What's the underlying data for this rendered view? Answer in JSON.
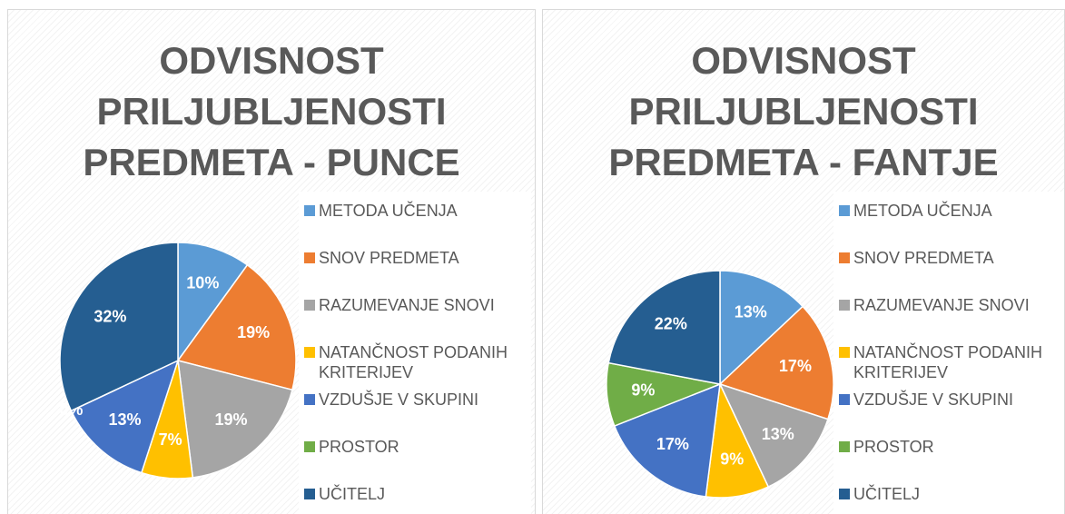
{
  "chart_data": [
    {
      "type": "pie",
      "title": "ODVISNOST PRILJUBLJENOSTI PREDMETA - PUNCE",
      "categories": [
        "METODA UČENJA",
        "SNOV PREDMETA",
        "RAZUMEVANJE SNOVI",
        "NATANČNOST PODANIH KRITERIJEV",
        "VZDUŠJE V SKUPINI",
        "PROSTOR",
        "UČITELJ"
      ],
      "values": [
        10,
        19,
        19,
        7,
        13,
        0,
        32
      ],
      "value_labels": [
        "10%",
        "19%",
        "19%",
        "7%",
        "13%",
        "0%",
        "32%"
      ],
      "colors": [
        "#5b9bd5",
        "#ed7d31",
        "#a5a5a5",
        "#ffc000",
        "#4472c4",
        "#70ad47",
        "#255e91"
      ],
      "legend": "right"
    },
    {
      "type": "pie",
      "title": "ODVISNOST PRILJUBLJENOSTI PREDMETA - FANTJE",
      "categories": [
        "METODA UČENJA",
        "SNOV PREDMETA",
        "RAZUMEVANJE SNOVI",
        "NATANČNOST PODANIH KRITERIJEV",
        "VZDUŠJE V SKUPINI",
        "PROSTOR",
        "UČITELJ"
      ],
      "values": [
        13,
        17,
        13,
        9,
        17,
        9,
        22
      ],
      "value_labels": [
        "13%",
        "17%",
        "13%",
        "9%",
        "17%",
        "9%",
        "22%"
      ],
      "colors": [
        "#5b9bd5",
        "#ed7d31",
        "#a5a5a5",
        "#ffc000",
        "#4472c4",
        "#70ad47",
        "#255e91"
      ],
      "legend": "right"
    }
  ]
}
